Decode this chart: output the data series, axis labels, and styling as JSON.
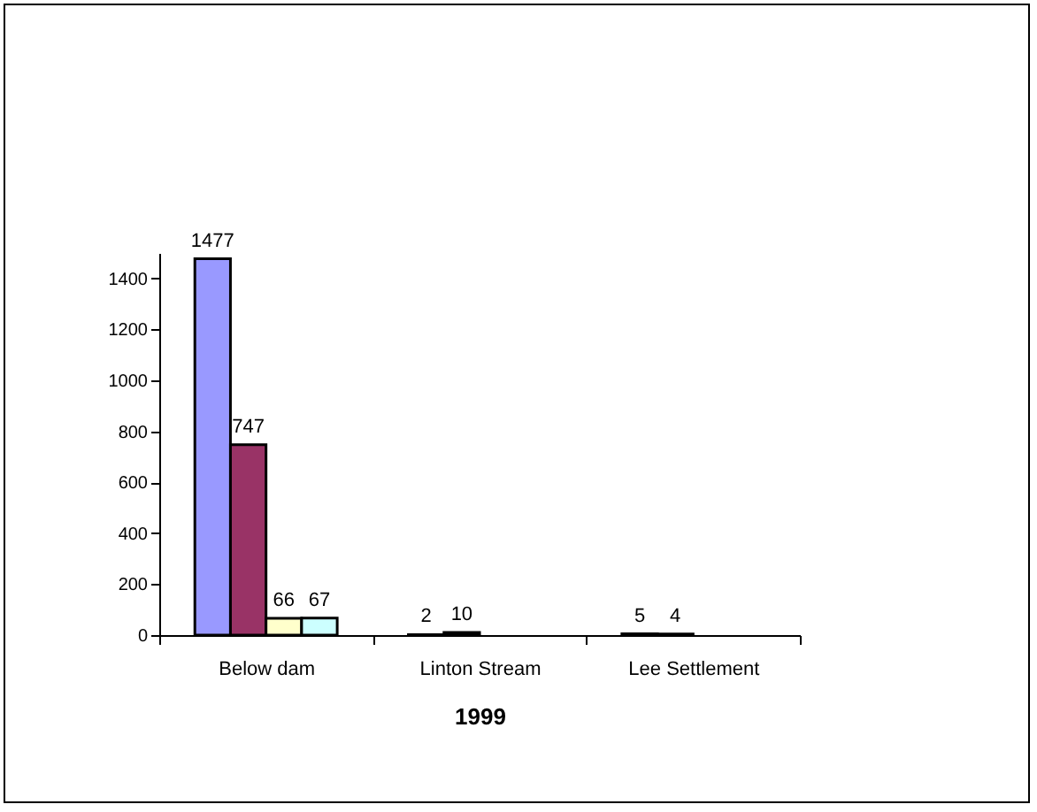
{
  "chart_data": {
    "type": "bar",
    "xlabel": "1999",
    "categories": [
      "Below dam",
      "Linton Stream",
      "Lee Settlement"
    ],
    "series": [
      {
        "color": "#9999ff",
        "values": [
          1477,
          2,
          5
        ]
      },
      {
        "color": "#993366",
        "values": [
          747,
          10,
          4
        ]
      },
      {
        "color": "#ffffcc",
        "values": [
          66,
          null,
          null
        ]
      },
      {
        "color": "#ccffff",
        "values": [
          67,
          null,
          null
        ]
      }
    ],
    "ylim": [
      0,
      1500
    ],
    "yticks": [
      0,
      200,
      400,
      600,
      800,
      1000,
      1200,
      1400
    ],
    "grid": false,
    "legend": false,
    "data_labels": true
  }
}
